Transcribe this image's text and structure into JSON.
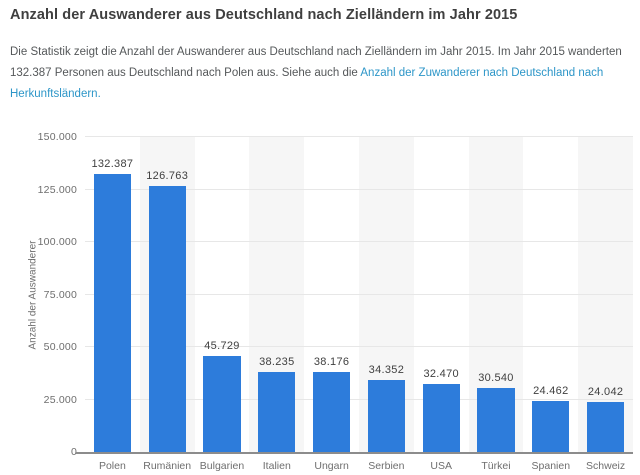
{
  "page": {
    "title": "Anzahl der Auswanderer aus Deutschland nach Zielländern im Jahr 2015",
    "description": {
      "text_before_link": "Die Statistik zeigt die Anzahl der Auswanderer aus Deutschland nach Zielländern im Jahr 2015. Im Jahr 2015 wanderten 132.387 Personen aus Deutschland nach Polen aus. Siehe auch die ",
      "link_text": "Anzahl der Zuwanderer nach Deutschland nach Herkunftsländern."
    }
  },
  "colors": {
    "bar": "#2d7cdb",
    "link": "#2d96c8",
    "title": "#3f3f3f",
    "body": "#55585a",
    "axis_label": "#6e6e6e",
    "data_label": "#404040",
    "grid": "#e7e7e7",
    "band": "#f6f6f6",
    "axis_line": "#8c8c8c"
  },
  "chart_data": {
    "type": "bar",
    "title": "",
    "xlabel": "",
    "ylabel": "Anzahl der Auswanderer",
    "categories": [
      "Polen",
      "Rumänien",
      "Bulgarien",
      "Italien",
      "Ungarn",
      "Serbien",
      "USA",
      "Türkei",
      "Spanien",
      "Schweiz"
    ],
    "values": [
      132387,
      126763,
      45729,
      38235,
      38176,
      34352,
      32470,
      30540,
      24462,
      24042
    ],
    "data_labels": [
      "132.387",
      "126.763",
      "45.729",
      "38.235",
      "38.176",
      "34.352",
      "32.470",
      "30.540",
      "24.462",
      "24.042"
    ],
    "ylim": [
      0,
      150000
    ],
    "ytick_step": 25000,
    "ytick_labels": [
      "0",
      "25.000",
      "50.000",
      "75.000",
      "100.000",
      "125.000",
      "150.000"
    ],
    "grid": true,
    "legend": false,
    "plot_bands_alternate": true
  }
}
